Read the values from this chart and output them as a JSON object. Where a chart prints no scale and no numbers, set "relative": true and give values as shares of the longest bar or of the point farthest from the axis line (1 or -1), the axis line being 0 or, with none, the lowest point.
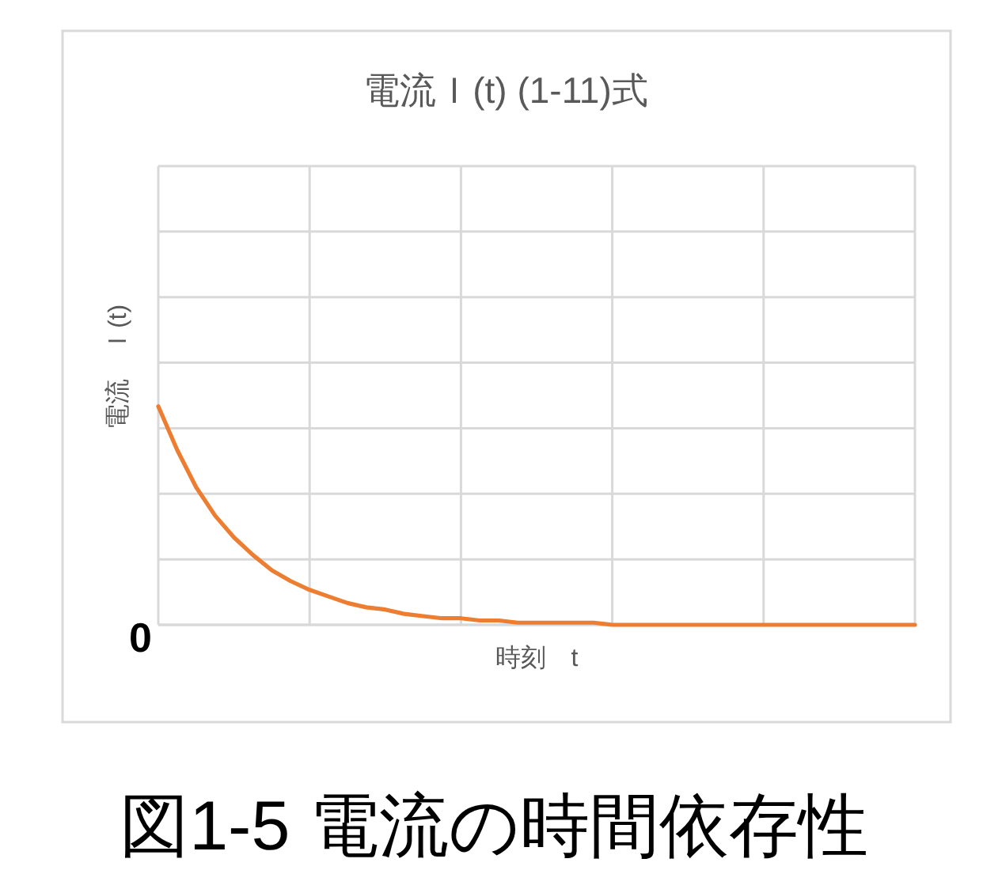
{
  "chart_data": {
    "type": "line",
    "title": "電流Ｉ(t) (1-11)式",
    "xlabel": "時刻　t",
    "ylabel": "電流　Ｉ(t)",
    "relative": true,
    "grid": true,
    "line_style": "solid",
    "categories": [
      null,
      null,
      null,
      null,
      null,
      null,
      null,
      null,
      null,
      null,
      null,
      null,
      null,
      null,
      null,
      null,
      null,
      null,
      null,
      null,
      null,
      null,
      null,
      null,
      null,
      null,
      null,
      null,
      null,
      null,
      null,
      null,
      null,
      null,
      null,
      null,
      null,
      null,
      null,
      null,
      null
    ],
    "series": [
      {
        "color": "#ed7d31",
        "values": [
          1,
          0.8,
          0.63,
          0.5,
          0.4,
          0.32,
          0.25,
          0.2,
          0.16,
          0.13,
          0.1,
          0.08,
          0.07,
          0.05,
          0.04,
          0.03,
          0.03,
          0.02,
          0.02,
          0.01,
          0.01,
          0.01,
          0.01,
          0.01,
          0,
          0,
          0,
          0,
          0,
          0,
          0,
          0,
          0,
          0,
          0,
          0,
          0,
          0,
          0,
          0,
          0
        ]
      }
    ],
    "annotations": [
      "0",
      "図1-5 電流の時間依存性"
    ]
  }
}
